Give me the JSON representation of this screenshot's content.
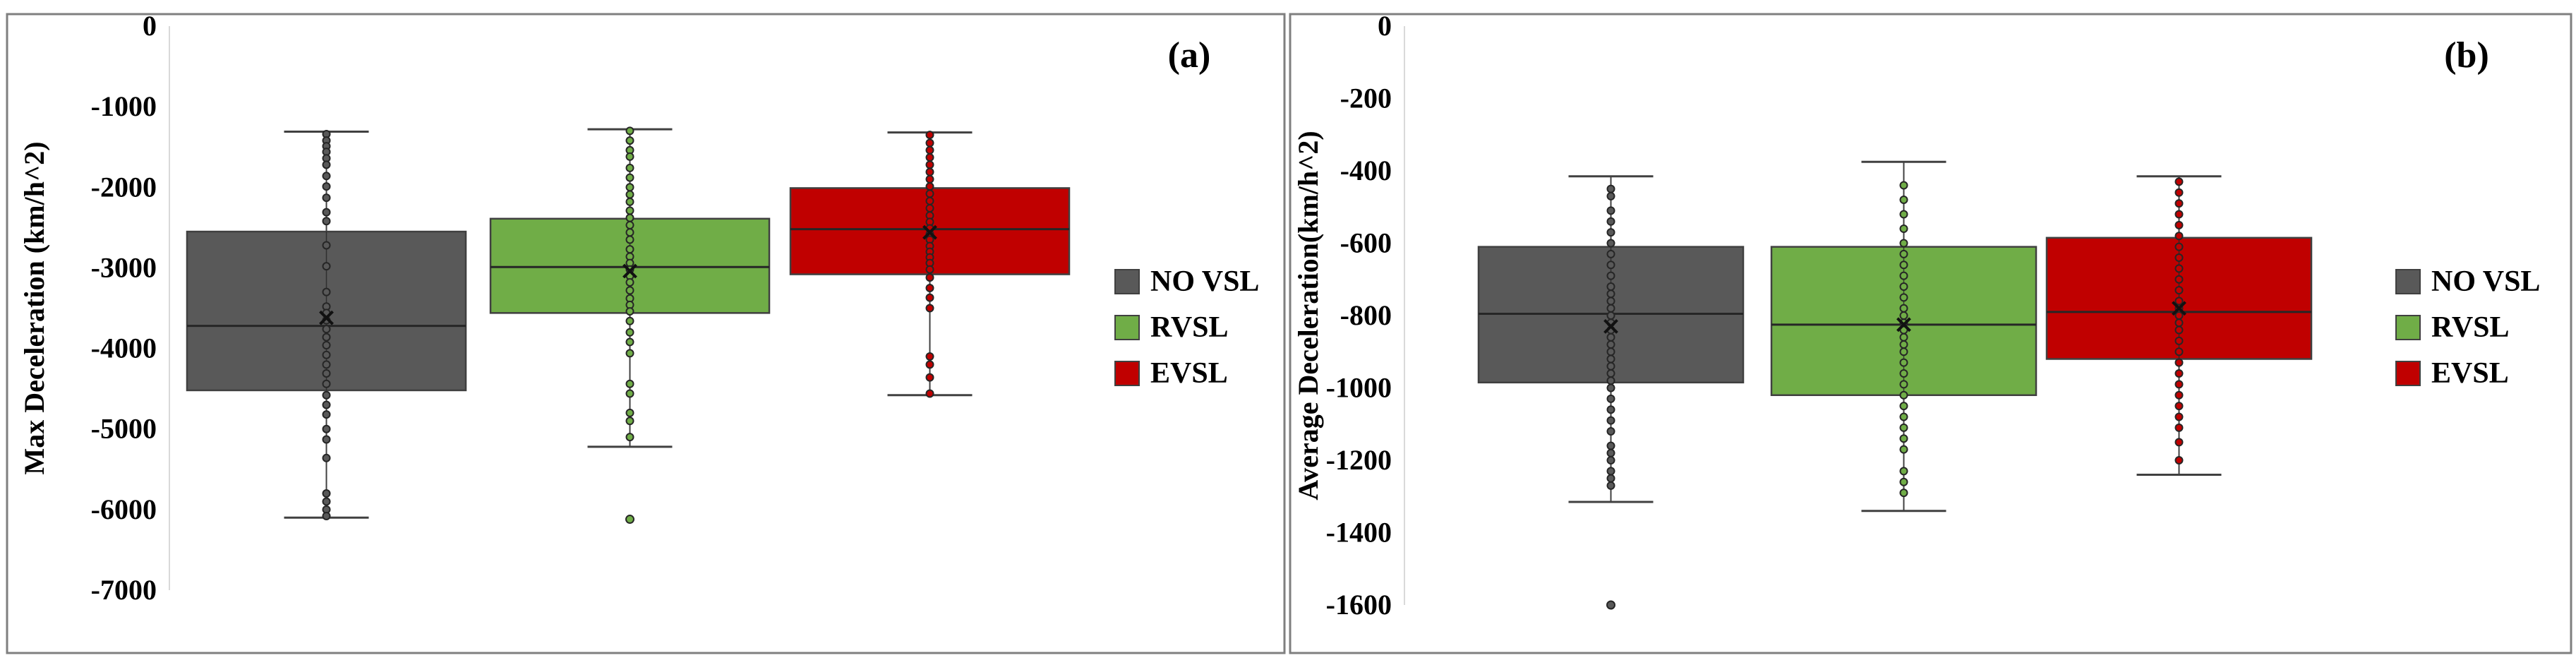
{
  "chart_data": [
    {
      "type": "box",
      "panel_label": "(a)",
      "ylabel": "Max Deceleration (km/h^2)",
      "ylim": [
        -7000,
        0
      ],
      "yticks": [
        0,
        -1000,
        -2000,
        -3000,
        -4000,
        -5000,
        -6000,
        -7000
      ],
      "legend_position": "right",
      "series": [
        {
          "name": "NO VSL",
          "color": "#595959",
          "whisker_low": -6100,
          "q1": -4520,
          "median": -3720,
          "mean": -3620,
          "q3": -2550,
          "whisker_high": -1310,
          "points": [
            -1340,
            -1420,
            -1490,
            -1560,
            -1640,
            -1720,
            -1860,
            -1990,
            -2130,
            -2310,
            -2420,
            -2720,
            -2980,
            -3300,
            -3480,
            -3560,
            -3650,
            -3760,
            -3860,
            -3960,
            -4080,
            -4200,
            -4310,
            -4440,
            -4580,
            -4700,
            -4820,
            -5000,
            -5130,
            -5360,
            -5800,
            -5900,
            -6000,
            -6080
          ],
          "outliers": []
        },
        {
          "name": "RVSL",
          "color": "#70ad47",
          "whisker_low": -5220,
          "q1": -3560,
          "median": -2990,
          "mean": -3040,
          "q3": -2390,
          "whisker_high": -1280,
          "points": [
            -1300,
            -1420,
            -1540,
            -1620,
            -1760,
            -1880,
            -2000,
            -2090,
            -2180,
            -2290,
            -2380,
            -2470,
            -2560,
            -2650,
            -2770,
            -2860,
            -2940,
            -3020,
            -3100,
            -3180,
            -3280,
            -3380,
            -3460,
            -3540,
            -3660,
            -3800,
            -3920,
            -4060,
            -4440,
            -4560,
            -4800,
            -4900,
            -5100
          ],
          "outliers": [
            -6120
          ]
        },
        {
          "name": "EVSL",
          "color": "#c00000",
          "whisker_low": -4580,
          "q1": -3080,
          "median": -2520,
          "mean": -2560,
          "q3": -2010,
          "whisker_high": -1320,
          "points": [
            -1350,
            -1450,
            -1540,
            -1630,
            -1720,
            -1810,
            -1900,
            -1990,
            -2080,
            -2170,
            -2260,
            -2350,
            -2430,
            -2510,
            -2580,
            -2650,
            -2730,
            -2800,
            -2870,
            -2940,
            -3020,
            -3120,
            -3250,
            -3370,
            -3500,
            -4100,
            -4200,
            -4360,
            -4560
          ],
          "outliers": []
        }
      ]
    },
    {
      "type": "box",
      "panel_label": "(b)",
      "ylabel": "Average Deceleration(km/h^2)",
      "ylim": [
        -1600,
        0
      ],
      "yticks": [
        0,
        -200,
        -400,
        -600,
        -800,
        -1000,
        -1200,
        -1400,
        -1600
      ],
      "legend_position": "right",
      "series": [
        {
          "name": "NO VSL",
          "color": "#595959",
          "whisker_low": -1315,
          "q1": -985,
          "median": -795,
          "mean": -830,
          "q3": -610,
          "whisker_high": -415,
          "points": [
            -450,
            -470,
            -510,
            -540,
            -570,
            -600,
            -630,
            -660,
            -690,
            -720,
            -740,
            -760,
            -780,
            -800,
            -820,
            -840,
            -860,
            -880,
            -900,
            -920,
            -940,
            -960,
            -980,
            -1000,
            -1030,
            -1060,
            -1090,
            -1120,
            -1160,
            -1180,
            -1200,
            -1230,
            -1250,
            -1270
          ],
          "outliers": [
            -1600
          ]
        },
        {
          "name": "RVSL",
          "color": "#70ad47",
          "whisker_low": -1340,
          "q1": -1020,
          "median": -825,
          "mean": -825,
          "q3": -610,
          "whisker_high": -375,
          "points": [
            -440,
            -480,
            -520,
            -560,
            -600,
            -630,
            -660,
            -690,
            -720,
            -750,
            -780,
            -800,
            -820,
            -840,
            -860,
            -880,
            -900,
            -930,
            -960,
            -990,
            -1020,
            -1050,
            -1080,
            -1110,
            -1140,
            -1170,
            -1230,
            -1260,
            -1290
          ],
          "outliers": []
        },
        {
          "name": "EVSL",
          "color": "#c00000",
          "whisker_low": -1240,
          "q1": -920,
          "median": -790,
          "mean": -780,
          "q3": -585,
          "whisker_high": -415,
          "points": [
            -430,
            -460,
            -490,
            -520,
            -550,
            -580,
            -610,
            -640,
            -670,
            -700,
            -730,
            -760,
            -780,
            -800,
            -820,
            -840,
            -870,
            -900,
            -930,
            -960,
            -990,
            -1020,
            -1050,
            -1080,
            -1110,
            -1150,
            -1200
          ],
          "outliers": []
        }
      ]
    }
  ]
}
